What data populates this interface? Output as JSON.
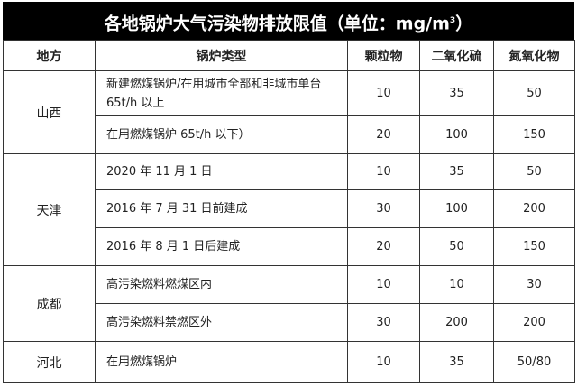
{
  "title": "各地锅炉大气污染物排放限值（单位：mg/m",
  "title_sup": "3",
  "title_end": "）",
  "headers": [
    "地方",
    "锅炉类型",
    "颗粒物",
    "二氧化硫",
    "氮氧化物"
  ],
  "regions": [
    {
      "name": "山西",
      "rows": [
        {
          "type": "新建燃煤锅炉/在用城市全部和非城市单台 65t/h 以上",
          "pm": "10",
          "so2": "35",
          "nox": "50"
        },
        {
          "type": "在用燃煤锅炉 65t/h 以下）",
          "pm": "20",
          "so2": "100",
          "nox": "150"
        }
      ]
    },
    {
      "name": "天津",
      "rows": [
        {
          "type": "2020 年 11 月 1 日",
          "pm": "10",
          "so2": "35",
          "nox": "50"
        },
        {
          "type": "2016 年 7 月 31 日前建成",
          "pm": "30",
          "so2": "100",
          "nox": "200"
        },
        {
          "type": "2016 年 8 月 1 日后建成",
          "pm": "20",
          "so2": "50",
          "nox": "150"
        }
      ]
    },
    {
      "name": "成都",
      "rows": [
        {
          "type": "高污染燃料燃煤区内",
          "pm": "10",
          "so2": "10",
          "nox": "30"
        },
        {
          "type": "高污染燃料禁燃区外",
          "pm": "30",
          "so2": "200",
          "nox": "200"
        }
      ]
    },
    {
      "name": "河北",
      "rows": [
        {
          "type": "在用燃煤锅炉",
          "pm": "10",
          "so2": "35",
          "nox": "50/80"
        }
      ]
    }
  ]
}
